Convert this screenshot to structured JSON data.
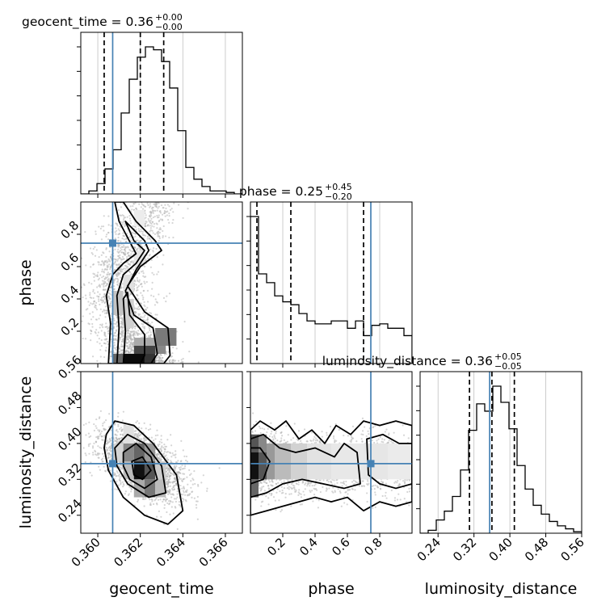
{
  "chart_data": {
    "type": "corner",
    "parameters": [
      "geocent_time",
      "phase",
      "luminosity_distance"
    ],
    "truth": {
      "geocent_time": 0.3607,
      "phase": 0.745,
      "luminosity_distance": 0.355
    },
    "titles": [
      {
        "text": "geocent_time = 0.36",
        "plus": "+0.00",
        "minus": "−0.00"
      },
      {
        "text": "phase = 0.25",
        "plus": "+0.45",
        "minus": "−0.20"
      },
      {
        "text": "luminosity_distance = 0.36",
        "plus": "+0.05",
        "minus": "−0.05"
      }
    ],
    "axes": {
      "geocent_time": {
        "range": [
          0.3592,
          0.3668
        ],
        "ticks": [
          0.36,
          0.362,
          0.364,
          0.366
        ],
        "tick_labels": [
          "0.360",
          "0.362",
          "0.364",
          "0.366"
        ]
      },
      "phase": {
        "range": [
          0.0,
          1.0
        ],
        "ticks": [
          0.2,
          0.4,
          0.6,
          0.8
        ],
        "tick_labels": [
          "0.2",
          "0.4",
          "0.6",
          "0.8"
        ]
      },
      "luminosity_distance": {
        "range": [
          0.2,
          0.56
        ],
        "ticks": [
          0.24,
          0.32,
          0.4,
          0.48,
          0.56
        ],
        "tick_labels": [
          "0.24",
          "0.32",
          "0.40",
          "0.48",
          "0.56"
        ]
      }
    },
    "quantiles": {
      "geocent_time": [
        0.3603,
        0.362,
        0.3631
      ],
      "phase": [
        0.04,
        0.25,
        0.7
      ],
      "luminosity_distance": [
        0.31,
        0.36,
        0.41
      ]
    },
    "histograms": {
      "geocent_time": {
        "edges_range": [
          0.3592,
          0.3668
        ],
        "bins": 20,
        "counts": [
          0.0,
          0.02,
          0.07,
          0.17,
          0.3,
          0.55,
          0.78,
          0.93,
          1.0,
          0.98,
          0.9,
          0.72,
          0.43,
          0.18,
          0.1,
          0.05,
          0.02,
          0.02,
          0.01,
          0.0
        ]
      },
      "phase": {
        "edges_range": [
          0.0,
          1.0
        ],
        "bins": 20,
        "counts": [
          1.0,
          0.61,
          0.55,
          0.46,
          0.42,
          0.4,
          0.34,
          0.29,
          0.27,
          0.27,
          0.29,
          0.29,
          0.24,
          0.29,
          0.19,
          0.26,
          0.27,
          0.24,
          0.24,
          0.19
        ]
      },
      "luminosity_distance": {
        "edges_range": [
          0.2,
          0.56
        ],
        "bins": 20,
        "counts": [
          0.0,
          0.02,
          0.09,
          0.15,
          0.25,
          0.43,
          0.7,
          0.88,
          0.83,
          1.0,
          0.89,
          0.71,
          0.46,
          0.3,
          0.19,
          0.13,
          0.08,
          0.05,
          0.03,
          0.01
        ]
      }
    },
    "pairs": [
      {
        "x": "geocent_time",
        "y": "phase"
      },
      {
        "x": "geocent_time",
        "y": "luminosity_distance"
      },
      {
        "x": "phase",
        "y": "luminosity_distance"
      }
    ],
    "colors": {
      "truth": "#4682b4",
      "hist": "#000000",
      "contour": "#000000",
      "scatter": "#b3b3b3",
      "grid": "#c0c0c0"
    }
  }
}
